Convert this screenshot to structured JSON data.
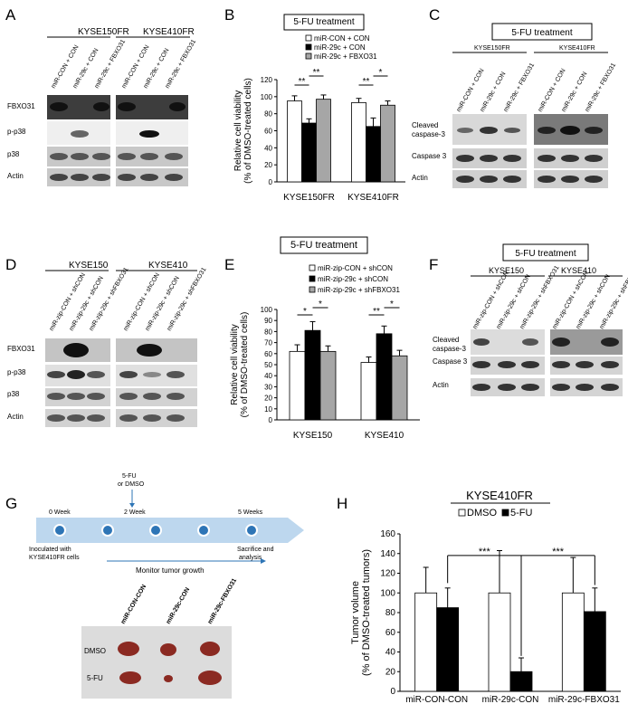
{
  "panel_letters": {
    "A": "A",
    "B": "B",
    "C": "C",
    "D": "D",
    "E": "E",
    "F": "F",
    "G": "G",
    "H": "H"
  },
  "colors": {
    "white": "#ffffff",
    "black": "#000000",
    "gray": "#a6a6a6",
    "blot_bg": "#d9d9d9",
    "timeline": "#bdd7ee",
    "dot": "#2e75b6",
    "tumor": "#8b2a22"
  },
  "panelA": {
    "groups": [
      "KYSE150FR",
      "KYSE410FR"
    ],
    "lanes": [
      "miR-CON + CON",
      "miR-29c + CON",
      "miR-29c + FBXO31"
    ],
    "rows": [
      "FBXO31",
      "p-p38",
      "p38",
      "Actin"
    ]
  },
  "panelC": {
    "title": "5-FU treatment",
    "groups": [
      "KYSE150FR",
      "KYSE410FR"
    ],
    "lanes": [
      "miR-CON + CON",
      "miR-29c + CON",
      "miR-29c + FBXO31"
    ],
    "rows": [
      "Cleaved caspase-3",
      "Caspase 3",
      "Actin"
    ]
  },
  "panelD": {
    "groups": [
      "KYSE150",
      "KYSE410"
    ],
    "lanes": [
      "miR-zip-CON + shCON",
      "miR-zip-29c + shCON",
      "miR-zip-29c + shFBXO31"
    ],
    "rows": [
      "FBXO31",
      "p-p38",
      "p38",
      "Actin"
    ]
  },
  "panelF": {
    "title": "5-FU treatment",
    "groups": [
      "KYSE150",
      "KYSE410"
    ],
    "lanes": [
      "miR-zip-CON + shCON",
      "miR-zip-29c + shCON",
      "miR-zip-29c + shFBXO31"
    ],
    "rows": [
      "Cleaved caspase-3",
      "Caspase 3",
      "Actin"
    ]
  },
  "panelG": {
    "timepoints": [
      "0 Week",
      "2 Week",
      "5 Weeks"
    ],
    "treatment": "5-FU\nor DMSO",
    "start_label": "Inoculated with\nKYSE410FR cells",
    "end_label": "Sacrifice and\nanalysis",
    "monitor_label": "Monitor tumor growth",
    "columns": [
      "miR-CON-CON",
      "miR-29c-CON",
      "miR-29c-FBXO31"
    ],
    "rows": [
      "DMSO",
      "5-FU"
    ]
  },
  "chart_data": [
    {
      "id": "B",
      "type": "bar",
      "title": "5-FU treatment",
      "ylabel": "Relative cell viability\n(% of DMSO-treated cells)",
      "ylim": [
        0,
        120
      ],
      "yticks": [
        0,
        20,
        40,
        60,
        80,
        100,
        120
      ],
      "categories": [
        "KYSE150FR",
        "KYSE410FR"
      ],
      "series": [
        {
          "name": "miR-CON + CON",
          "values": [
            95,
            93
          ],
          "errors": [
            6,
            5
          ],
          "color": "white"
        },
        {
          "name": "miR-29c + CON",
          "values": [
            69,
            65
          ],
          "errors": [
            5,
            10
          ],
          "color": "black"
        },
        {
          "name": "miR-29c + FBXO31",
          "values": [
            97,
            90
          ],
          "errors": [
            5,
            5
          ],
          "color": "gray"
        }
      ],
      "significance": [
        "**",
        "**",
        "**",
        "*"
      ]
    },
    {
      "id": "E",
      "type": "bar",
      "title": "5-FU treatment",
      "ylabel": "Relative cell viability\n(% of DMSO-treated cells)",
      "ylim": [
        0,
        100
      ],
      "yticks": [
        0,
        10,
        20,
        30,
        40,
        50,
        60,
        70,
        80,
        90,
        100
      ],
      "categories": [
        "KYSE150",
        "KYSE410"
      ],
      "series": [
        {
          "name": "miR-zip-CON + shCON",
          "values": [
            62,
            52
          ],
          "errors": [
            6,
            5
          ],
          "color": "white"
        },
        {
          "name": "miR-zip-29c + shCON",
          "values": [
            81,
            78
          ],
          "errors": [
            8,
            7
          ],
          "color": "black"
        },
        {
          "name": "miR-zip-29c + shFBXO31",
          "values": [
            62,
            58
          ],
          "errors": [
            5,
            5
          ],
          "color": "gray"
        }
      ],
      "significance": [
        "*",
        "*",
        "**",
        "*"
      ]
    },
    {
      "id": "H",
      "type": "bar",
      "title": "KYSE410FR",
      "ylabel": "Tumor volume\n(% of DMSO-treated tumors)",
      "ylim": [
        0,
        160
      ],
      "yticks": [
        0,
        20,
        40,
        60,
        80,
        100,
        120,
        140,
        160
      ],
      "categories": [
        "miR-CON-CON",
        "miR-29c-CON",
        "miR-29c-FBXO31"
      ],
      "series": [
        {
          "name": "DMSO",
          "values": [
            100,
            100,
            100
          ],
          "errors": [
            26,
            43,
            36
          ],
          "color": "white"
        },
        {
          "name": "5-FU",
          "values": [
            85,
            20,
            81
          ],
          "errors": [
            20,
            14,
            24
          ],
          "color": "black"
        }
      ],
      "significance": [
        "***",
        "***"
      ]
    }
  ]
}
